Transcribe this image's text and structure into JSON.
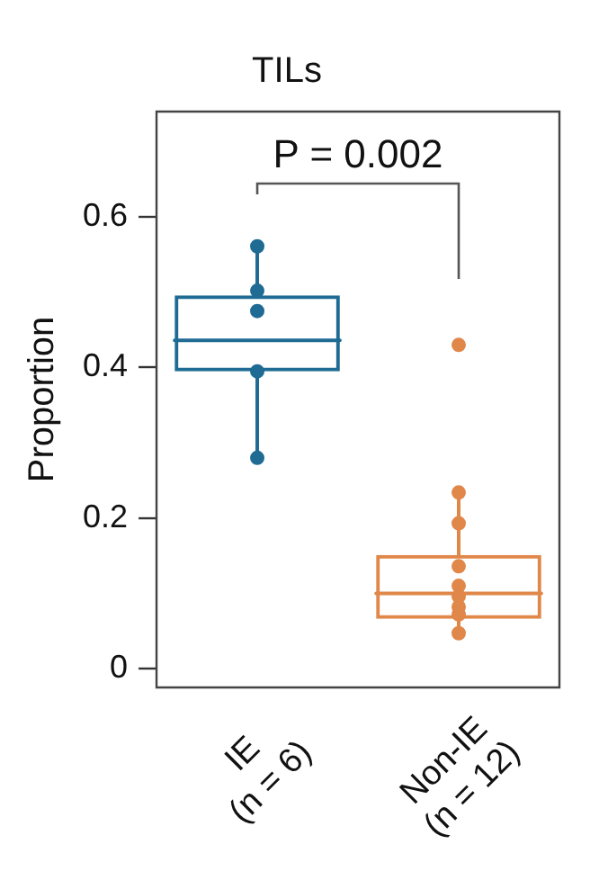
{
  "chart_data": {
    "type": "box",
    "title": "TILs",
    "ylabel": "Proportion",
    "categories": [
      "IE\n(n = 6)",
      "Non-IE\n(n = 12)"
    ],
    "ylim": [
      -0.025,
      0.74
    ],
    "yticks": [
      0,
      0.2,
      0.4,
      0.6
    ],
    "grid": false,
    "series": [
      {
        "type": "box",
        "colors": [
          "#1f6b94",
          "#e0874a"
        ],
        "boxes": [
          {
            "low": 0.28,
            "q1": 0.395,
            "median": 0.436,
            "q3": 0.496,
            "high": 0.561
          },
          {
            "low": 0.047,
            "q1": 0.066,
            "median": 0.1,
            "q3": 0.151,
            "high": 0.234
          }
        ]
      },
      {
        "type": "scatter",
        "marker": "circle",
        "x": [
          "IE\n(n = 6)",
          "IE\n(n = 6)",
          "IE\n(n = 6)",
          "IE\n(n = 6)",
          "IE\n(n = 6)",
          "Non-IE\n(n = 12)",
          "Non-IE\n(n = 12)",
          "Non-IE\n(n = 12)",
          "Non-IE\n(n = 12)",
          "Non-IE\n(n = 12)",
          "Non-IE\n(n = 12)",
          "Non-IE\n(n = 12)",
          "Non-IE\n(n = 12)",
          "Non-IE\n(n = 12)"
        ],
        "values": [
          0.561,
          0.502,
          0.475,
          0.395,
          0.28,
          0.43,
          0.234,
          0.193,
          0.136,
          0.11,
          0.096,
          0.082,
          0.072,
          0.047
        ],
        "colors": [
          "#1f6b94",
          "#1f6b94",
          "#1f6b94",
          "#1f6b94",
          "#1f6b94",
          "#e0874a",
          "#e0874a",
          "#e0874a",
          "#e0874a",
          "#e0874a",
          "#e0874a",
          "#e0874a",
          "#e0874a",
          "#e0874a"
        ]
      }
    ],
    "annotations": [
      "P = 0.002"
    ],
    "legend": false
  }
}
